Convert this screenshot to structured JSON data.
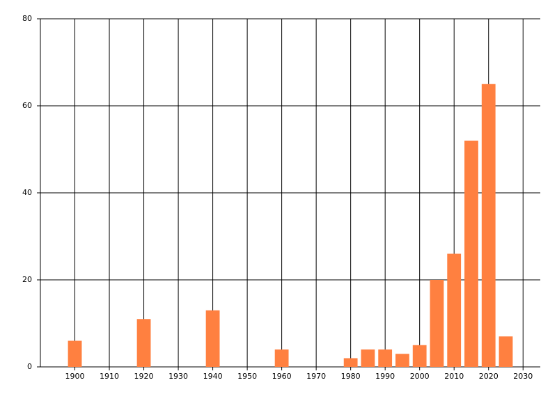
{
  "chart_data": {
    "type": "bar",
    "x": [
      1900,
      1920,
      1940,
      1960,
      1980,
      1985,
      1990,
      1995,
      2000,
      2005,
      2010,
      2015,
      2020,
      2025
    ],
    "values": [
      6,
      11,
      13,
      4,
      2,
      4,
      4,
      3,
      5,
      20,
      26,
      52,
      65,
      7
    ],
    "color": "#ff8040",
    "xlim": [
      1890,
      2035
    ],
    "xticks": [
      1900,
      1910,
      1920,
      1930,
      1940,
      1950,
      1960,
      1970,
      1980,
      1990,
      2000,
      2010,
      2020,
      2030
    ],
    "ylim": [
      0,
      80
    ],
    "yticks": [
      0,
      20,
      40,
      60,
      80
    ],
    "grid": true
  }
}
